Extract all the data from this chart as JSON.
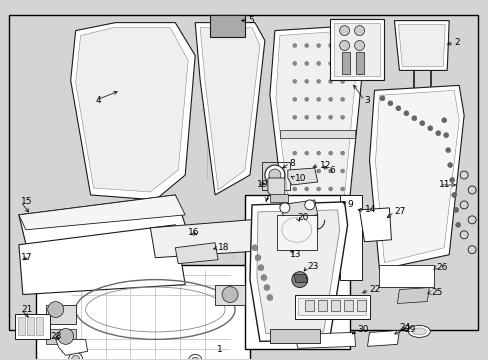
{
  "bg_color": "#d4d4d4",
  "border_color": "#000000",
  "line_color": "#1a1a1a",
  "lw_main": 0.8,
  "lw_thin": 0.5,
  "fs_label": 6.5
}
